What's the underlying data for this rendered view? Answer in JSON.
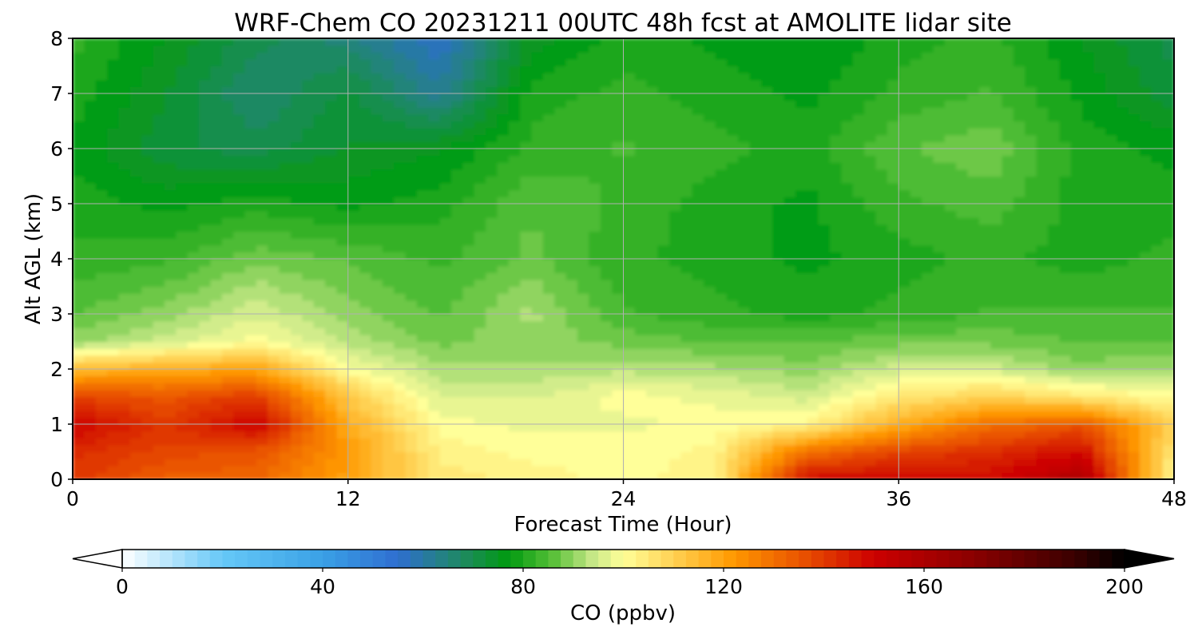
{
  "chart_data": {
    "type": "heatmap",
    "title": "WRF-Chem CO  20231211 00UTC 48h fcst at AMOLITE lidar site",
    "xlabel": "Forecast Time (Hour)",
    "ylabel": "Alt AGL (km)",
    "xlim": [
      0,
      48
    ],
    "ylim": [
      0,
      8
    ],
    "x_ticks": [
      0,
      12,
      24,
      36,
      48
    ],
    "y_ticks": [
      0,
      1,
      2,
      3,
      4,
      5,
      6,
      7,
      8
    ],
    "grid": true,
    "x": [
      0,
      4,
      8,
      12,
      16,
      20,
      24,
      28,
      32,
      36,
      40,
      44,
      48
    ],
    "y": [
      0,
      0.5,
      1,
      1.5,
      2,
      2.5,
      3,
      4,
      5,
      6,
      7,
      8
    ],
    "z": [
      [
        140,
        133,
        132,
        120,
        105,
        103,
        100,
        103,
        148,
        150,
        148,
        160,
        100
      ],
      [
        142,
        138,
        135,
        122,
        103,
        100,
        100,
        102,
        130,
        138,
        142,
        148,
        105
      ],
      [
        150,
        140,
        150,
        118,
        100,
        98,
        98,
        100,
        102,
        118,
        130,
        135,
        110
      ],
      [
        138,
        135,
        140,
        112,
        96,
        96,
        100,
        98,
        95,
        105,
        110,
        105,
        100
      ],
      [
        115,
        118,
        120,
        100,
        92,
        92,
        93,
        92,
        90,
        95,
        95,
        90,
        92
      ],
      [
        90,
        95,
        100,
        93,
        88,
        90,
        88,
        86,
        86,
        88,
        88,
        86,
        86
      ],
      [
        86,
        90,
        96,
        90,
        86,
        92,
        84,
        82,
        80,
        82,
        84,
        84,
        84
      ],
      [
        82,
        83,
        88,
        86,
        83,
        87,
        82,
        80,
        78,
        80,
        82,
        80,
        82
      ],
      [
        80,
        78,
        80,
        78,
        80,
        86,
        83,
        80,
        78,
        83,
        85,
        80,
        80
      ],
      [
        78,
        72,
        70,
        74,
        76,
        82,
        84,
        82,
        80,
        86,
        88,
        80,
        78
      ],
      [
        80,
        74,
        66,
        72,
        62,
        80,
        82,
        80,
        78,
        82,
        84,
        78,
        72
      ],
      [
        82,
        76,
        70,
        65,
        56,
        75,
        80,
        78,
        76,
        80,
        82,
        76,
        70
      ]
    ],
    "colorbar": {
      "label": "CO  (ppbv)",
      "min": 0,
      "max": 200,
      "ticks": [
        0,
        40,
        80,
        120,
        160,
        200
      ],
      "extend": "both",
      "stops": [
        {
          "v": 0,
          "c": "#ffffff"
        },
        {
          "v": 20,
          "c": "#66c8f7"
        },
        {
          "v": 40,
          "c": "#3aa0e6"
        },
        {
          "v": 55,
          "c": "#2f6ed0"
        },
        {
          "v": 68,
          "c": "#1e8a60"
        },
        {
          "v": 77,
          "c": "#009a10"
        },
        {
          "v": 86,
          "c": "#58c038"
        },
        {
          "v": 94,
          "c": "#c8e888"
        },
        {
          "v": 100,
          "c": "#ffff99"
        },
        {
          "v": 112,
          "c": "#ffc845"
        },
        {
          "v": 122,
          "c": "#ff9800"
        },
        {
          "v": 136,
          "c": "#e85000"
        },
        {
          "v": 150,
          "c": "#cc0000"
        },
        {
          "v": 170,
          "c": "#8a0000"
        },
        {
          "v": 190,
          "c": "#3a0000"
        },
        {
          "v": 200,
          "c": "#000000"
        }
      ]
    }
  }
}
